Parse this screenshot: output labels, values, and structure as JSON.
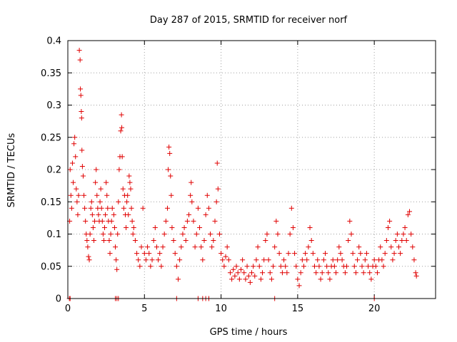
{
  "chart_data": {
    "type": "scatter",
    "title": "Day 287 of 2015, SRMTID for receiver norf",
    "xlabel": "GPS time / hours",
    "ylabel": "SRMTID / TECUs",
    "xlim": [
      0,
      24
    ],
    "ylim": [
      0,
      0.4
    ],
    "x_ticks": [
      {
        "value": 0,
        "label": "0"
      },
      {
        "value": 5,
        "label": "5"
      },
      {
        "value": 10,
        "label": "10"
      },
      {
        "value": 15,
        "label": "15"
      },
      {
        "value": 20,
        "label": "20"
      }
    ],
    "y_ticks": [
      {
        "value": 0,
        "label": "0"
      },
      {
        "value": 0.05,
        "label": "0.05"
      },
      {
        "value": 0.1,
        "label": "0.1"
      },
      {
        "value": 0.15,
        "label": "0.15"
      },
      {
        "value": 0.2,
        "label": "0.2"
      },
      {
        "value": 0.25,
        "label": "0.25"
      },
      {
        "value": 0.3,
        "label": "0.3"
      },
      {
        "value": 0.35,
        "label": "0.35"
      },
      {
        "value": 0.4,
        "label": "0.4"
      }
    ],
    "grid": true,
    "marker": "+",
    "series_color": "#e00000",
    "series": [
      {
        "name": "SRMTID",
        "points": [
          [
            0.1,
            0
          ],
          [
            0.12,
            0.12
          ],
          [
            0.15,
            0.2
          ],
          [
            0.2,
            0.16
          ],
          [
            0.25,
            0.14
          ],
          [
            0.3,
            0.21
          ],
          [
            0.35,
            0.18
          ],
          [
            0.4,
            0.24
          ],
          [
            0.45,
            0.25
          ],
          [
            0.5,
            0.22
          ],
          [
            0.55,
            0.17
          ],
          [
            0.6,
            0.15
          ],
          [
            0.65,
            0.13
          ],
          [
            0.7,
            0.16
          ],
          [
            0.75,
            0.385
          ],
          [
            0.8,
            0.37
          ],
          [
            0.82,
            0.325
          ],
          [
            0.85,
            0.315
          ],
          [
            0.88,
            0.29
          ],
          [
            0.9,
            0.28
          ],
          [
            0.92,
            0.23
          ],
          [
            0.95,
            0.205
          ],
          [
            1.0,
            0.19
          ],
          [
            1.05,
            0.16
          ],
          [
            1.1,
            0.14
          ],
          [
            1.15,
            0.12
          ],
          [
            1.2,
            0.1
          ],
          [
            1.25,
            0.09
          ],
          [
            1.3,
            0.08
          ],
          [
            1.35,
            0.065
          ],
          [
            1.4,
            0.06
          ],
          [
            1.45,
            0.1
          ],
          [
            1.5,
            0.14
          ],
          [
            1.55,
            0.15
          ],
          [
            1.6,
            0.13
          ],
          [
            1.65,
            0.11
          ],
          [
            1.7,
            0.09
          ],
          [
            1.75,
            0.12
          ],
          [
            1.8,
            0.18
          ],
          [
            1.85,
            0.2
          ],
          [
            1.9,
            0.16
          ],
          [
            1.95,
            0.14
          ],
          [
            2.0,
            0.13
          ],
          [
            2.05,
            0.12
          ],
          [
            2.1,
            0.15
          ],
          [
            2.15,
            0.17
          ],
          [
            2.2,
            0.14
          ],
          [
            2.25,
            0.12
          ],
          [
            2.3,
            0.1
          ],
          [
            2.35,
            0.09
          ],
          [
            2.4,
            0.11
          ],
          [
            2.45,
            0.13
          ],
          [
            2.5,
            0.18
          ],
          [
            2.55,
            0.16
          ],
          [
            2.6,
            0.14
          ],
          [
            2.65,
            0.12
          ],
          [
            2.7,
            0.09
          ],
          [
            2.75,
            0.07
          ],
          [
            2.8,
            0.1
          ],
          [
            2.85,
            0.12
          ],
          [
            2.9,
            0.14
          ],
          [
            3.0,
            0.13
          ],
          [
            3.05,
            0.11
          ],
          [
            3.1,
            0.08
          ],
          [
            3.15,
            0.06
          ],
          [
            3.2,
            0.045
          ],
          [
            3.25,
            0.1
          ],
          [
            3.3,
            0.15
          ],
          [
            3.35,
            0.2
          ],
          [
            3.4,
            0.22
          ],
          [
            3.45,
            0.26
          ],
          [
            3.5,
            0.285
          ],
          [
            3.52,
            0.265
          ],
          [
            3.55,
            0.22
          ],
          [
            3.6,
            0.17
          ],
          [
            3.65,
            0.14
          ],
          [
            3.7,
            0.16
          ],
          [
            3.75,
            0.13
          ],
          [
            3.8,
            0.11
          ],
          [
            3.85,
            0.15
          ],
          [
            3.9,
            0.16
          ],
          [
            3.95,
            0.13
          ],
          [
            4.0,
            0.19
          ],
          [
            4.05,
            0.18
          ],
          [
            4.1,
            0.17
          ],
          [
            4.15,
            0.14
          ],
          [
            4.2,
            0.12
          ],
          [
            4.25,
            0.1
          ],
          [
            4.3,
            0.11
          ],
          [
            4.4,
            0.09
          ],
          [
            4.5,
            0.07
          ],
          [
            4.6,
            0.06
          ],
          [
            4.7,
            0.05
          ],
          [
            4.8,
            0.08
          ],
          [
            4.9,
            0.14
          ],
          [
            5.0,
            0.07
          ],
          [
            5.1,
            0.06
          ],
          [
            5.2,
            0.08
          ],
          [
            5.3,
            0.07
          ],
          [
            5.4,
            0.05
          ],
          [
            5.5,
            0.06
          ],
          [
            5.6,
            0.09
          ],
          [
            5.7,
            0.11
          ],
          [
            5.8,
            0.08
          ],
          [
            5.9,
            0.06
          ],
          [
            6.0,
            0.07
          ],
          [
            6.1,
            0.05
          ],
          [
            6.2,
            0.08
          ],
          [
            6.3,
            0.1
          ],
          [
            6.4,
            0.12
          ],
          [
            6.5,
            0.14
          ],
          [
            6.55,
            0.2
          ],
          [
            6.6,
            0.235
          ],
          [
            6.65,
            0.225
          ],
          [
            6.7,
            0.19
          ],
          [
            6.75,
            0.16
          ],
          [
            6.8,
            0.11
          ],
          [
            6.9,
            0.09
          ],
          [
            7.0,
            0.07
          ],
          [
            7.1,
            0.05
          ],
          [
            7.2,
            0.03
          ],
          [
            7.3,
            0.06
          ],
          [
            7.4,
            0.08
          ],
          [
            7.5,
            0.1
          ],
          [
            7.6,
            0.11
          ],
          [
            7.7,
            0.09
          ],
          [
            7.8,
            0.12
          ],
          [
            7.9,
            0.13
          ],
          [
            8.0,
            0.16
          ],
          [
            8.05,
            0.18
          ],
          [
            8.1,
            0.15
          ],
          [
            8.2,
            0.12
          ],
          [
            8.3,
            0.08
          ],
          [
            8.4,
            0.1
          ],
          [
            8.5,
            0.14
          ],
          [
            8.6,
            0.11
          ],
          [
            8.7,
            0.08
          ],
          [
            8.8,
            0.06
          ],
          [
            8.9,
            0.09
          ],
          [
            9.0,
            0.13
          ],
          [
            9.1,
            0.16
          ],
          [
            9.2,
            0.14
          ],
          [
            9.3,
            0.1
          ],
          [
            9.4,
            0.08
          ],
          [
            9.5,
            0.09
          ],
          [
            9.6,
            0.12
          ],
          [
            9.7,
            0.15
          ],
          [
            9.75,
            0.21
          ],
          [
            9.8,
            0.17
          ],
          [
            9.9,
            0.1
          ],
          [
            10.0,
            0.07
          ],
          [
            10.1,
            0.06
          ],
          [
            10.2,
            0.05
          ],
          [
            10.3,
            0.065
          ],
          [
            10.4,
            0.08
          ],
          [
            10.5,
            0.06
          ],
          [
            10.6,
            0.04
          ],
          [
            10.7,
            0.03
          ],
          [
            10.8,
            0.045
          ],
          [
            10.9,
            0.035
          ],
          [
            11.0,
            0.05
          ],
          [
            11.1,
            0.04
          ],
          [
            11.2,
            0.03
          ],
          [
            11.3,
            0.045
          ],
          [
            11.4,
            0.06
          ],
          [
            11.5,
            0.04
          ],
          [
            11.6,
            0.03
          ],
          [
            11.7,
            0.05
          ],
          [
            11.8,
            0.035
          ],
          [
            11.9,
            0.025
          ],
          [
            12.0,
            0.04
          ],
          [
            12.1,
            0.05
          ],
          [
            12.2,
            0.035
          ],
          [
            12.3,
            0.06
          ],
          [
            12.4,
            0.08
          ],
          [
            12.5,
            0.05
          ],
          [
            12.6,
            0.03
          ],
          [
            12.7,
            0.04
          ],
          [
            12.8,
            0.06
          ],
          [
            12.9,
            0.09
          ],
          [
            13.0,
            0.1
          ],
          [
            13.1,
            0.06
          ],
          [
            13.2,
            0.04
          ],
          [
            13.3,
            0.03
          ],
          [
            13.4,
            0.05
          ],
          [
            13.5,
            0.08
          ],
          [
            13.6,
            0.12
          ],
          [
            13.7,
            0.1
          ],
          [
            13.8,
            0.07
          ],
          [
            13.9,
            0.05
          ],
          [
            14.0,
            0.04
          ],
          [
            14.1,
            0.06
          ],
          [
            14.2,
            0.05
          ],
          [
            14.3,
            0.04
          ],
          [
            14.4,
            0.07
          ],
          [
            14.5,
            0.1
          ],
          [
            14.6,
            0.14
          ],
          [
            14.7,
            0.11
          ],
          [
            14.8,
            0.07
          ],
          [
            14.9,
            0.05
          ],
          [
            15.0,
            0.03
          ],
          [
            15.1,
            0.02
          ],
          [
            15.2,
            0.04
          ],
          [
            15.3,
            0.06
          ],
          [
            15.4,
            0.05
          ],
          [
            15.5,
            0.07
          ],
          [
            15.6,
            0.06
          ],
          [
            15.7,
            0.08
          ],
          [
            15.8,
            0.11
          ],
          [
            15.9,
            0.09
          ],
          [
            16.0,
            0.07
          ],
          [
            16.1,
            0.05
          ],
          [
            16.2,
            0.04
          ],
          [
            16.3,
            0.06
          ],
          [
            16.4,
            0.05
          ],
          [
            16.5,
            0.03
          ],
          [
            16.6,
            0.04
          ],
          [
            16.7,
            0.06
          ],
          [
            16.8,
            0.07
          ],
          [
            16.9,
            0.05
          ],
          [
            17.0,
            0.04
          ],
          [
            17.1,
            0.03
          ],
          [
            17.2,
            0.05
          ],
          [
            17.3,
            0.06
          ],
          [
            17.4,
            0.05
          ],
          [
            17.5,
            0.04
          ],
          [
            17.6,
            0.06
          ],
          [
            17.7,
            0.08
          ],
          [
            17.8,
            0.07
          ],
          [
            17.9,
            0.06
          ],
          [
            18.0,
            0.05
          ],
          [
            18.1,
            0.04
          ],
          [
            18.2,
            0.05
          ],
          [
            18.3,
            0.09
          ],
          [
            18.4,
            0.12
          ],
          [
            18.5,
            0.1
          ],
          [
            18.6,
            0.07
          ],
          [
            18.7,
            0.05
          ],
          [
            18.8,
            0.04
          ],
          [
            18.9,
            0.06
          ],
          [
            19.0,
            0.08
          ],
          [
            19.1,
            0.07
          ],
          [
            19.2,
            0.05
          ],
          [
            19.3,
            0.04
          ],
          [
            19.4,
            0.06
          ],
          [
            19.5,
            0.07
          ],
          [
            19.6,
            0.05
          ],
          [
            19.7,
            0.04
          ],
          [
            19.8,
            0.03
          ],
          [
            19.9,
            0.05
          ],
          [
            20.0,
            0.06
          ],
          [
            20.1,
            0.05
          ],
          [
            20.2,
            0.04
          ],
          [
            20.3,
            0.06
          ],
          [
            20.4,
            0.08
          ],
          [
            20.5,
            0.06
          ],
          [
            20.6,
            0.05
          ],
          [
            20.7,
            0.07
          ],
          [
            20.8,
            0.09
          ],
          [
            20.9,
            0.11
          ],
          [
            21.0,
            0.12
          ],
          [
            21.1,
            0.08
          ],
          [
            21.2,
            0.06
          ],
          [
            21.3,
            0.07
          ],
          [
            21.4,
            0.09
          ],
          [
            21.5,
            0.1
          ],
          [
            21.6,
            0.08
          ],
          [
            21.7,
            0.07
          ],
          [
            21.8,
            0.09
          ],
          [
            21.9,
            0.1
          ],
          [
            22.0,
            0.11
          ],
          [
            22.1,
            0.09
          ],
          [
            22.2,
            0.13
          ],
          [
            22.3,
            0.135
          ],
          [
            22.4,
            0.1
          ],
          [
            22.5,
            0.08
          ],
          [
            22.6,
            0.06
          ],
          [
            22.7,
            0.04
          ],
          [
            22.75,
            0.035
          ],
          [
            0.15,
            0
          ],
          [
            3.1,
            0
          ],
          [
            3.2,
            0
          ],
          [
            3.3,
            0
          ],
          [
            7.1,
            0
          ],
          [
            8.5,
            0
          ],
          [
            8.8,
            0
          ],
          [
            9.0,
            0
          ],
          [
            9.2,
            0
          ],
          [
            13.5,
            0
          ],
          [
            20.0,
            0
          ]
        ]
      }
    ]
  }
}
